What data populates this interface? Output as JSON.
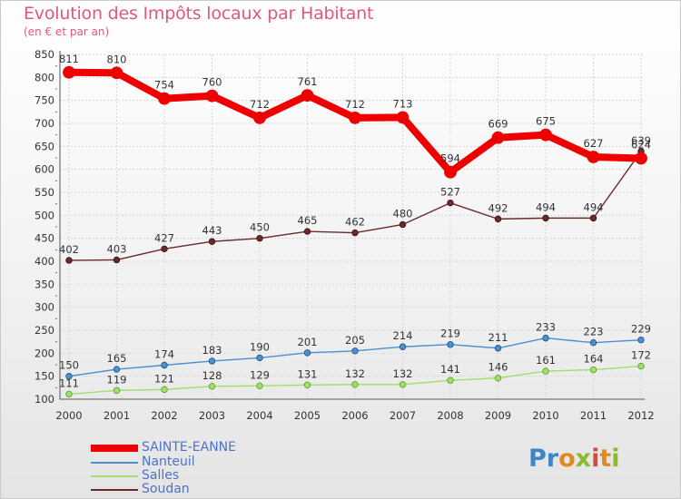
{
  "header": {
    "title": "Evolution des Impôts locaux par Habitant",
    "subtitle": "(en € et par an)"
  },
  "logo": {
    "text": "Proxiti"
  },
  "chart_data": {
    "type": "line",
    "title": "Evolution des Impôts locaux par Habitant",
    "subtitle": "(en € et par an)",
    "xlabel": "",
    "ylabel": "",
    "x": [
      "2000",
      "2001",
      "2002",
      "2003",
      "2004",
      "2005",
      "2006",
      "2007",
      "2008",
      "2009",
      "2010",
      "2011",
      "2012"
    ],
    "ylim": [
      100,
      850
    ],
    "yticks": [
      100,
      150,
      200,
      250,
      300,
      350,
      400,
      450,
      500,
      550,
      600,
      650,
      700,
      750,
      800,
      850
    ],
    "grid": true,
    "legend": "bottom-left",
    "series": [
      {
        "name": "SAINTE-EANNE",
        "color": "#ee0000",
        "values": [
          811,
          810,
          754,
          760,
          712,
          761,
          712,
          713,
          594,
          669,
          675,
          627,
          624
        ]
      },
      {
        "name": "Nanteuil",
        "color": "#4a90d0",
        "values": [
          150,
          165,
          174,
          183,
          190,
          201,
          205,
          214,
          219,
          211,
          233,
          223,
          229
        ]
      },
      {
        "name": "Salles",
        "color": "#9ee06a",
        "values": [
          111,
          119,
          121,
          128,
          129,
          131,
          132,
          132,
          141,
          146,
          161,
          164,
          172
        ]
      },
      {
        "name": "Soudan",
        "color": "#6b2a2a",
        "values": [
          402,
          403,
          427,
          443,
          450,
          465,
          462,
          480,
          527,
          492,
          494,
          494,
          639
        ]
      }
    ]
  }
}
